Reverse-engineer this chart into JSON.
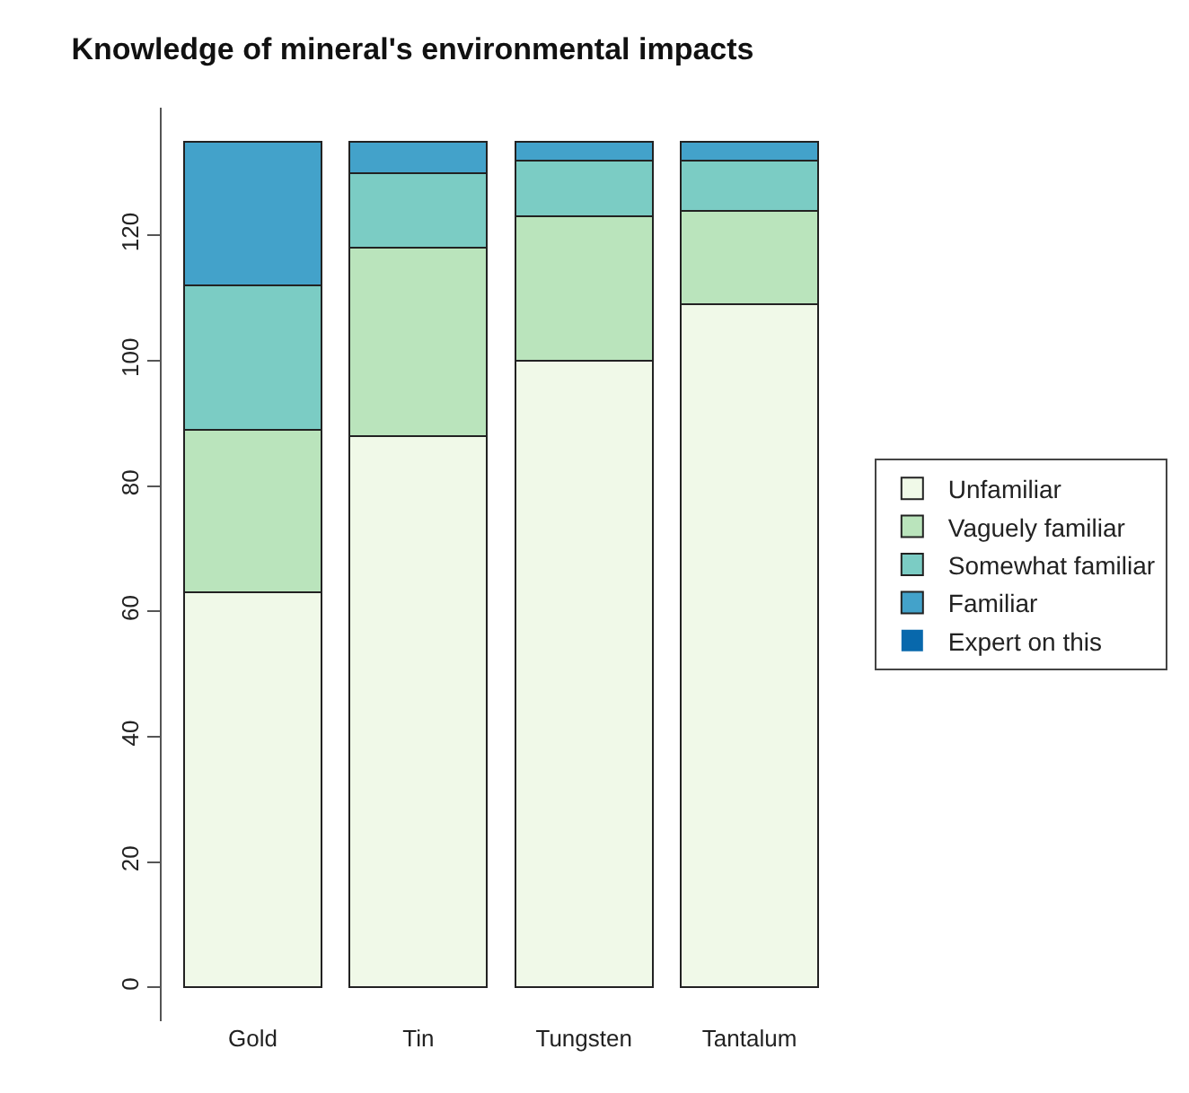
{
  "chart_data": {
    "type": "bar",
    "title": "Knowledge of mineral's environmental impacts",
    "categories": [
      "Gold",
      "Tin",
      "Tungsten",
      "Tantalum"
    ],
    "stacked": true,
    "series": [
      {
        "name": "Unfamiliar",
        "color": "#f0f9e8",
        "values": [
          63,
          88,
          100,
          109
        ]
      },
      {
        "name": "Vaguely familiar",
        "color": "#bae4bc",
        "values": [
          26,
          30,
          23,
          15
        ]
      },
      {
        "name": "Somewhat familiar",
        "color": "#7bccc4",
        "values": [
          23,
          12,
          9,
          8
        ]
      },
      {
        "name": "Familiar",
        "color": "#43a2ca",
        "values": [
          23,
          5,
          3,
          3
        ]
      },
      {
        "name": "Expert on this",
        "color": "#0868ac",
        "values": [
          0,
          0,
          0,
          0
        ]
      }
    ],
    "ylim": [
      -5.4,
      140.4
    ],
    "yticks": [
      0,
      20,
      40,
      60,
      80,
      100,
      120
    ],
    "legend": "right"
  }
}
